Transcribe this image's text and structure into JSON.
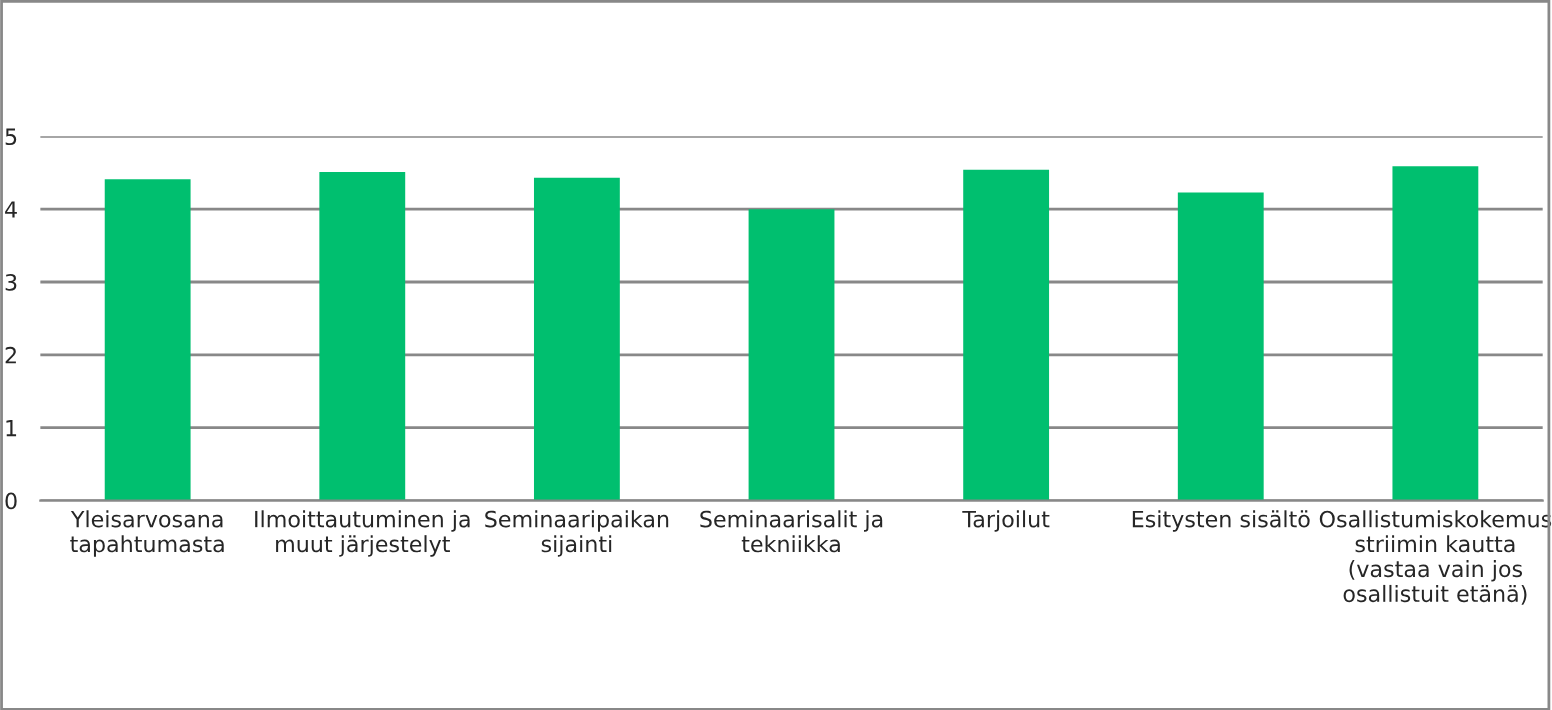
{
  "chart_data": {
    "type": "bar",
    "categories": [
      "Yleisarvosana\ntapahtumasta",
      "Ilmoittautuminen ja\nmuut järjestelyt",
      "Seminaaripaikan\nsijainti",
      "Seminaarisalit ja\ntekniikka",
      "Tarjoilut",
      "Esitysten sisältö",
      "Osallistumiskokemus\nstriimin kautta\n(vastaa vain jos\nosallistuit etänä)"
    ],
    "values": [
      4.41,
      4.51,
      4.43,
      4.0,
      4.54,
      4.23,
      4.59
    ],
    "color": "#00bf6f",
    "ylim": [
      0,
      5
    ],
    "yticks": [
      0,
      1,
      2,
      3,
      4,
      5
    ],
    "grid": "y",
    "legend": false
  }
}
